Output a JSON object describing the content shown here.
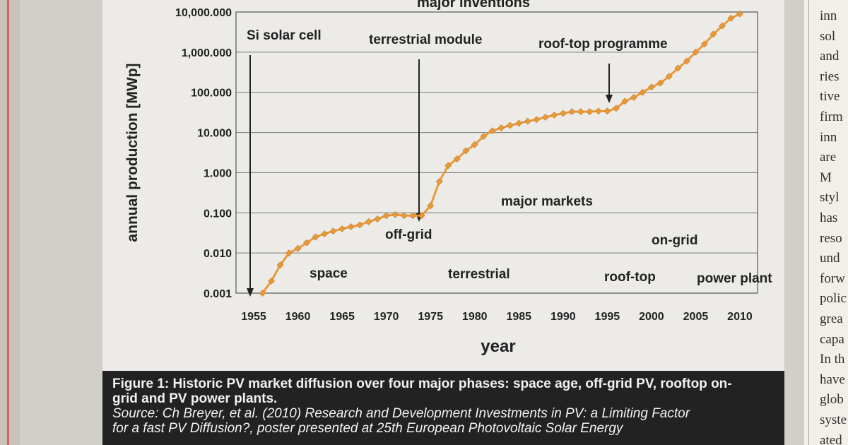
{
  "chart_data": {
    "type": "line",
    "title": "major inventions",
    "xlabel": "year",
    "ylabel": "annual production [MWp]",
    "yscale": "log",
    "ylim": [
      0.001,
      10000
    ],
    "xlim": [
      1953,
      2012
    ],
    "x_ticks": [
      "1955",
      "1960",
      "1965",
      "1970",
      "1975",
      "1980",
      "1985",
      "1990",
      "1995",
      "2000",
      "2005",
      "2010"
    ],
    "y_ticks": [
      "0.001",
      "0.010",
      "0.100",
      "1.000",
      "10.000",
      "100.000",
      "1,000.000",
      "10,000.000"
    ],
    "grid": "horizontal",
    "series": [
      {
        "color": "#e89a3a",
        "x": [
          1956,
          1957,
          1958,
          1959,
          1960,
          1961,
          1962,
          1963,
          1964,
          1965,
          1966,
          1967,
          1968,
          1969,
          1970,
          1971,
          1972,
          1973,
          1974,
          1975,
          1976,
          1977,
          1978,
          1979,
          1980,
          1981,
          1982,
          1983,
          1984,
          1985,
          1986,
          1987,
          1988,
          1989,
          1990,
          1991,
          1992,
          1993,
          1994,
          1995,
          1996,
          1997,
          1998,
          1999,
          2000,
          2001,
          2002,
          2003,
          2004,
          2005,
          2006,
          2007,
          2008,
          2009,
          2010
        ],
        "y": [
          0.001,
          0.002,
          0.005,
          0.01,
          0.013,
          0.018,
          0.025,
          0.03,
          0.035,
          0.04,
          0.045,
          0.05,
          0.06,
          0.07,
          0.085,
          0.09,
          0.085,
          0.085,
          0.085,
          0.15,
          0.6,
          1.5,
          2.2,
          3.5,
          5,
          8,
          11,
          13,
          15,
          17,
          19,
          21,
          24,
          27,
          30,
          33,
          33,
          33,
          34,
          34,
          40,
          60,
          75,
          100,
          135,
          170,
          250,
          400,
          600,
          1000,
          1600,
          2800,
          4500,
          7000,
          9000
        ]
      }
    ],
    "annotations": [
      {
        "text": "Si solar cell",
        "year": 1956
      },
      {
        "text": "terrestrial module",
        "year": 1974
      },
      {
        "text": "roof-top programme",
        "year": 1995
      },
      {
        "text": "major markets"
      },
      {
        "text": "off-grid"
      },
      {
        "text": "space"
      },
      {
        "text": "terrestrial"
      },
      {
        "text": "roof-top"
      },
      {
        "text": "on-grid"
      },
      {
        "text": "power plant"
      }
    ]
  },
  "caption": {
    "line1": "Figure 1: Historic PV market diffusion over four major phases: space age, off-grid PV, rooftop on-",
    "line2": "grid and PV power plants.",
    "line3": "Source: Ch Breyer, et al. (2010) Research and Development Investments in PV: a Limiting Factor",
    "line4": "for a fast PV Diffusion?, poster presented at 25th European Photovoltaic Solar Energy"
  },
  "right_column": [
    "inn",
    "sol",
    "and",
    "ries",
    "tive",
    "firm",
    "inn",
    "are",
    "M",
    "styl",
    "has",
    "reso",
    "und",
    "forw",
    "polic",
    "grea",
    "capa",
    "In th",
    "have",
    "glob",
    "syste",
    "ated"
  ]
}
